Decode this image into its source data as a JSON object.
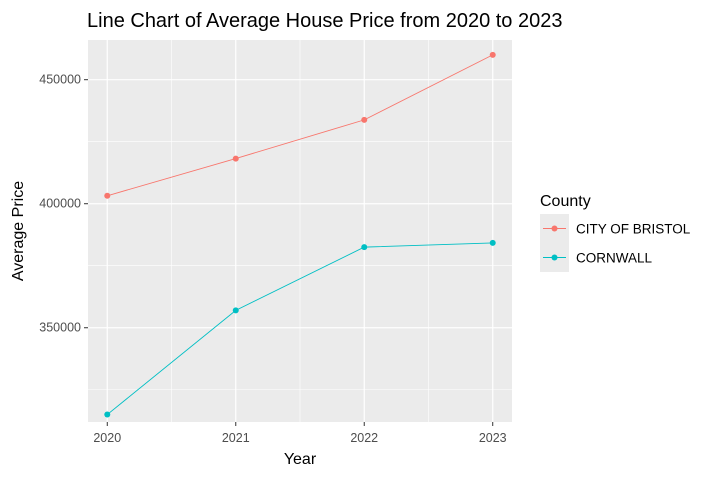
{
  "chart_data": {
    "type": "line",
    "title": "Line Chart of Average House Price from 2020 to 2023",
    "xlabel": "Year",
    "ylabel": "Average Price",
    "x": [
      2020,
      2021,
      2022,
      2023
    ],
    "x_tick_labels": [
      "2020",
      "2021",
      "2022",
      "2023"
    ],
    "y_ticks": [
      350000,
      400000,
      450000
    ],
    "y_tick_labels": [
      "350000",
      "400000",
      "450000"
    ],
    "ylim": [
      312000,
      466000
    ],
    "xlim": [
      2019.85,
      2023.15
    ],
    "grid": true,
    "legend_position": "right",
    "legend_title": "County",
    "series": [
      {
        "name": "CITY OF BRISTOL",
        "color": "#F8766D",
        "values": [
          403200,
          418200,
          433800,
          460000
        ]
      },
      {
        "name": "CORNWALL",
        "color": "#00BFC4",
        "values": [
          315000,
          357000,
          382500,
          384200
        ]
      }
    ]
  }
}
